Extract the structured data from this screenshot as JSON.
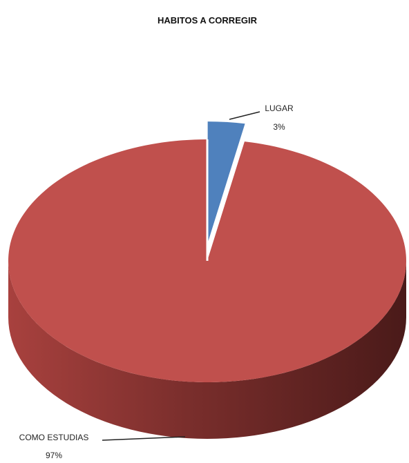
{
  "chart_data": {
    "type": "pie",
    "title": "HABITOS A CORREGIR",
    "slices": [
      {
        "label": "LUGAR",
        "value": 3,
        "value_label": "3%",
        "color": "#4f81bd"
      },
      {
        "label": "COMO ESTUDIAS",
        "value": 97,
        "value_label": "97%",
        "color": "#c0504d"
      }
    ],
    "style": "3d-exploded"
  }
}
